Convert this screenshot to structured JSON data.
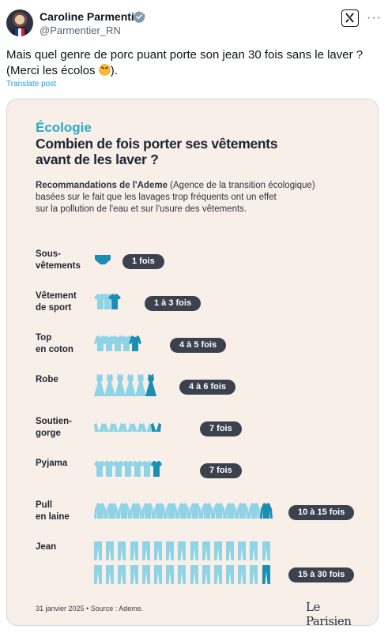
{
  "author": {
    "name": "Caroline Parmentier",
    "handle": "@Parmentier_RN"
  },
  "tweet": {
    "line1": "Mais quel genre de porc puant porte son jean 30 fois sans le laver ?",
    "line2_before": "(Merci les écolos ",
    "line2_after": ").",
    "translate": "Translate post"
  },
  "poster": {
    "kicker": "Écologie",
    "title_line1": "Combien de fois porter ses vêtements",
    "title_line2": "avant de les laver ?",
    "subtitle_bold": "Recommandations de l'Ademe",
    "subtitle_line1_rest": " (Agence de la transition écologique)",
    "subtitle_line2": "basées sur le fait que les lavages trop fréquents ont un effet",
    "subtitle_line3": "sur la pollution de l'eau et sur l'usure des vêtements.",
    "footer": "31 janvier 2025 • Source : Ademe.",
    "brand": "Le Parisien"
  },
  "rows": [
    {
      "label_line1": "Sous-",
      "label_line2": "vêtements",
      "pill": "1 fois",
      "icon": "underwear-icon",
      "count": 1
    },
    {
      "label_line1": "Vêtement",
      "label_line2": "de sport",
      "pill": "1 à 3 fois",
      "icon": "tshirt-icon",
      "count": 3
    },
    {
      "label_line1": "Top",
      "label_line2": "en coton",
      "pill": "4 à 5 fois",
      "icon": "top-icon",
      "count": 5
    },
    {
      "label_line1": "Robe",
      "label_line2": "",
      "pill": "4 à 6 fois",
      "icon": "dress-icon",
      "count": 6
    },
    {
      "label_line1": "Soutien-",
      "label_line2": "gorge",
      "pill": "7 fois",
      "icon": "bra-icon",
      "count": 7
    },
    {
      "label_line1": "Pyjama",
      "label_line2": "",
      "pill": "7 fois",
      "icon": "pyjama-icon",
      "count": 7
    },
    {
      "label_line1": "Pull",
      "label_line2": "en laine",
      "pill": "10 à 15 fois",
      "icon": "sweater-icon",
      "count": 15
    },
    {
      "label_line1": "Jean",
      "label_line2": "",
      "pill": "15 à 30 fois",
      "icon": "jeans-icon",
      "count": 30
    }
  ],
  "colors": {
    "accent_dark": "#1a8fb3",
    "accent_light": "#8fd3e6",
    "pill": "#3b414d",
    "link": "#1d9bf0"
  }
}
